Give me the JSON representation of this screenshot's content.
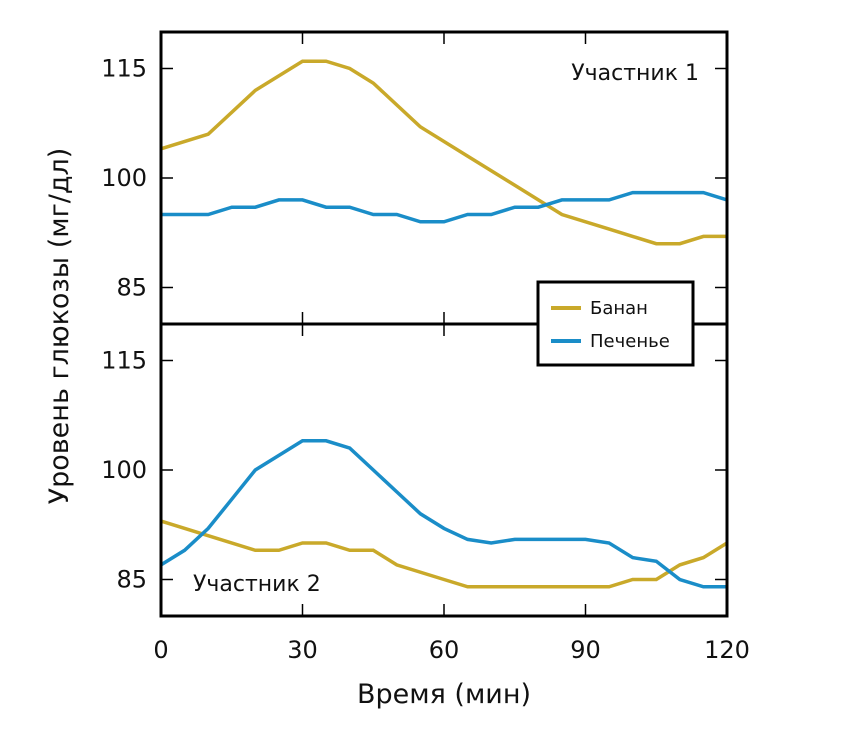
{
  "chart_data": {
    "type": "line",
    "xlabel": "Время (мин)",
    "ylabel": "Уровень глюкозы (мг/дл)",
    "xlim": [
      0,
      120
    ],
    "ylim": [
      80,
      120
    ],
    "x_ticks": [
      0,
      30,
      60,
      90,
      120
    ],
    "y_ticks": [
      85,
      100,
      115
    ],
    "legend": {
      "placement": "center-right",
      "entries": [
        {
          "name": "Банан",
          "color": "#C9A92A"
        },
        {
          "name": "Печенье",
          "color": "#1A8DC8"
        }
      ]
    },
    "panels": [
      {
        "title": "Участник 1",
        "title_placement": "top-right",
        "series": [
          {
            "name": "Банан",
            "color": "#C9A92A",
            "x": [
              0,
              10,
              20,
              30,
              35,
              40,
              45,
              55,
              65,
              75,
              85,
              95,
              100,
              105,
              110,
              115,
              120
            ],
            "values": [
              104,
              106,
              112,
              116,
              116,
              115,
              113,
              107,
              103,
              99,
              95,
              93,
              92,
              91,
              91,
              92,
              92
            ]
          },
          {
            "name": "Печенье",
            "color": "#1A8DC8",
            "x": [
              0,
              10,
              15,
              20,
              25,
              30,
              35,
              40,
              45,
              50,
              55,
              60,
              65,
              70,
              75,
              80,
              85,
              90,
              95,
              100,
              105,
              110,
              115,
              120
            ],
            "values": [
              95,
              95,
              96,
              96,
              97,
              97,
              96,
              96,
              95,
              95,
              94,
              94,
              95,
              95,
              96,
              96,
              97,
              97,
              97,
              98,
              98,
              98,
              98,
              97
            ]
          }
        ]
      },
      {
        "title": "Участник 2",
        "title_placement": "bottom-left",
        "series": [
          {
            "name": "Банан",
            "color": "#C9A92A",
            "x": [
              0,
              10,
              20,
              25,
              30,
              35,
              40,
              45,
              50,
              60,
              65,
              70,
              80,
              90,
              95,
              100,
              105,
              110,
              115,
              120
            ],
            "values": [
              93,
              91,
              89,
              89,
              90,
              90,
              89,
              89,
              87,
              85,
              84,
              84,
              84,
              84,
              84,
              85,
              85,
              87,
              88,
              90
            ]
          },
          {
            "name": "Печенье",
            "color": "#1A8DC8",
            "x": [
              0,
              5,
              10,
              15,
              20,
              25,
              30,
              35,
              40,
              45,
              50,
              55,
              60,
              65,
              70,
              75,
              80,
              85,
              90,
              95,
              100,
              105,
              110,
              115,
              120
            ],
            "values": [
              87,
              89,
              92,
              96,
              100,
              102,
              104,
              104,
              103,
              100,
              97,
              94,
              92,
              90.5,
              90,
              90.5,
              90.5,
              90.5,
              90.5,
              90,
              88,
              87.5,
              85,
              84,
              84
            ]
          }
        ]
      }
    ]
  }
}
